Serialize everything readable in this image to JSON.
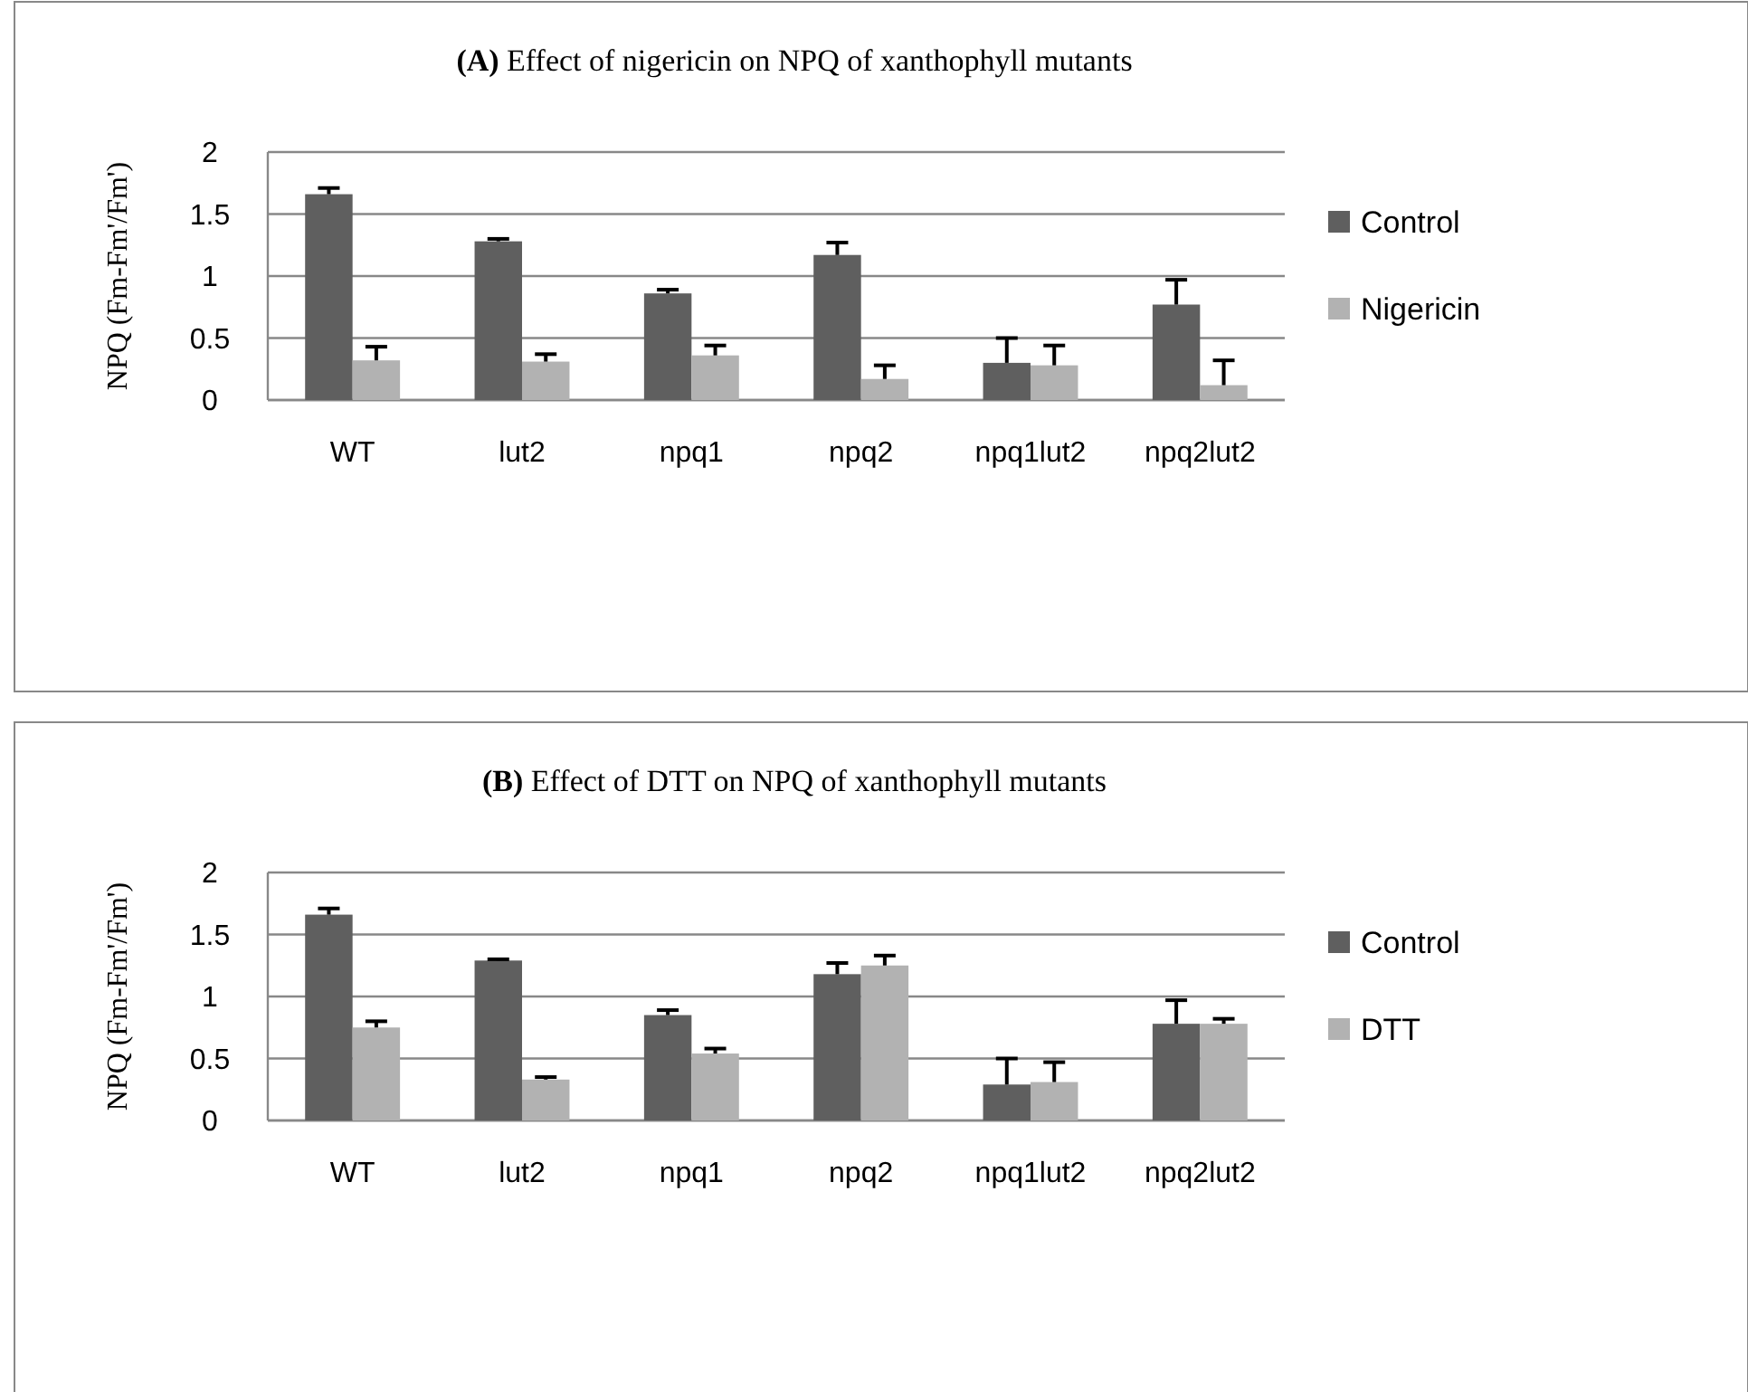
{
  "chart_data": [
    {
      "type": "bar",
      "title": "(A) Effect of nigericin on NPQ of xanthophyll mutants",
      "ylabel": "NPQ (Fm-Fm'/Fm')",
      "categories": [
        "WT",
        "lut2",
        "npq1",
        "npq2",
        "npq1lut2",
        "npq2lut2"
      ],
      "ylim": [
        0,
        2
      ],
      "yticks": [
        0,
        0.5,
        1,
        1.5,
        2
      ],
      "grid": "y",
      "legend": "right",
      "series": [
        {
          "name": "Control",
          "color": "#5f5f5f",
          "values": [
            1.66,
            1.28,
            0.86,
            1.17,
            0.3,
            0.77
          ],
          "errors": [
            [
              1.66,
              1.71
            ],
            [
              1.28,
              1.3
            ],
            [
              0.86,
              0.89
            ],
            [
              1.17,
              1.27
            ],
            [
              0.3,
              0.5
            ],
            [
              0.77,
              0.97
            ]
          ]
        },
        {
          "name": "Nigericin",
          "color": "#b2b2b2",
          "values": [
            0.32,
            0.31,
            0.36,
            0.17,
            0.28,
            0.12
          ],
          "errors": [
            [
              0.32,
              0.43
            ],
            [
              0.31,
              0.37
            ],
            [
              0.36,
              0.44
            ],
            [
              0.17,
              0.28
            ],
            [
              0.28,
              0.44
            ],
            [
              0.12,
              0.32
            ]
          ]
        }
      ]
    },
    {
      "type": "bar",
      "title": "(B) Effect of DTT on NPQ of xanthophyll mutants",
      "ylabel": "NPQ (Fm-Fm'/Fm')",
      "categories": [
        "WT",
        "lut2",
        "npq1",
        "npq2",
        "npq1lut2",
        "npq2lut2"
      ],
      "ylim": [
        0,
        2
      ],
      "yticks": [
        0,
        0.5,
        1,
        1.5,
        2
      ],
      "grid": "y",
      "legend": "right",
      "series": [
        {
          "name": "Control",
          "color": "#5f5f5f",
          "values": [
            1.66,
            1.29,
            0.85,
            1.18,
            0.29,
            0.78
          ],
          "errors": [
            [
              1.66,
              1.71
            ],
            [
              1.29,
              1.3
            ],
            [
              0.85,
              0.89
            ],
            [
              1.18,
              1.27
            ],
            [
              0.29,
              0.5
            ],
            [
              0.78,
              0.97
            ]
          ]
        },
        {
          "name": "DTT",
          "color": "#b2b2b2",
          "values": [
            0.75,
            0.33,
            0.54,
            1.25,
            0.31,
            0.78
          ],
          "errors": [
            [
              0.75,
              0.8
            ],
            [
              0.33,
              0.35
            ],
            [
              0.54,
              0.58
            ],
            [
              1.25,
              1.33
            ],
            [
              0.31,
              0.47
            ],
            [
              0.78,
              0.82
            ]
          ]
        }
      ]
    }
  ]
}
